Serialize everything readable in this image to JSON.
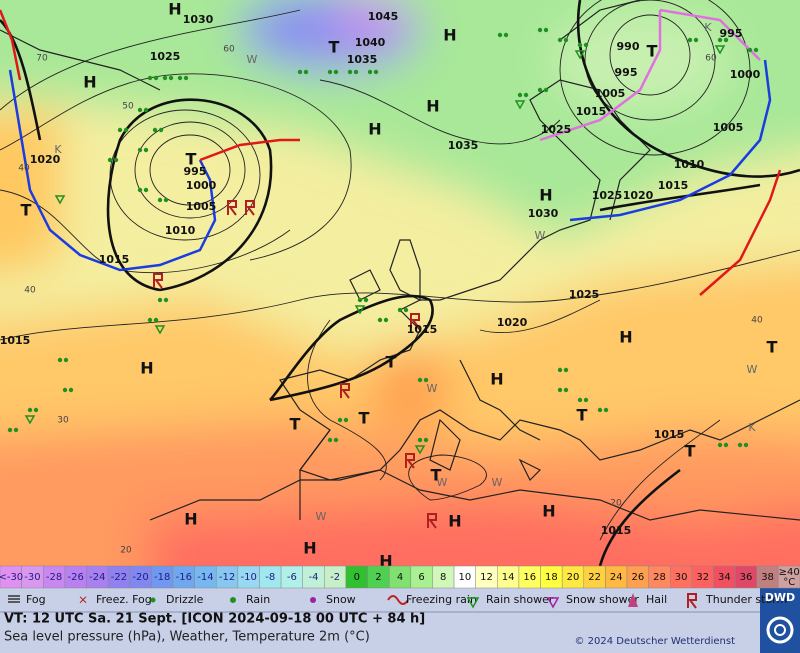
{
  "map": {
    "isobar_labels": [
      "1030",
      "1025",
      "1045",
      "1040",
      "1035",
      "1035",
      "1020",
      "995",
      "1000",
      "1005",
      "1010",
      "1015",
      "1015",
      "990",
      "995",
      "1005",
      "1015",
      "1025",
      "1000",
      "995",
      "1005",
      "1010",
      "1015",
      "1025",
      "1020",
      "1030",
      "1025",
      "1020",
      "1015",
      "1015",
      "1015"
    ],
    "pressure_centers": [
      "H",
      "H",
      "T",
      "H",
      "H",
      "H",
      "T",
      "T",
      "H",
      "T",
      "T",
      "T",
      "T",
      "H",
      "H",
      "H",
      "T",
      "T",
      "T",
      "T",
      "H",
      "H",
      "H",
      "H",
      "H"
    ],
    "grid_labels": [
      "60",
      "50",
      "40",
      "40",
      "30",
      "20",
      "60",
      "40",
      "20",
      "70"
    ],
    "airmass_labels": [
      "K",
      "K",
      "W",
      "W",
      "W",
      "W",
      "W",
      "W",
      "K",
      "W"
    ]
  },
  "temperature_scale": {
    "below": "<-30",
    "steps": [
      -30,
      -28,
      -26,
      -24,
      -22,
      -20,
      -18,
      -16,
      -14,
      -12,
      -10,
      -8,
      -6,
      -4,
      -2,
      0,
      2,
      4,
      6,
      8,
      10,
      12,
      14,
      16,
      18,
      20,
      22,
      24,
      26,
      28,
      30,
      32,
      34,
      36,
      38
    ],
    "above": "≥40",
    "unit": "°C"
  },
  "legend": [
    "Fog",
    "Freez. Fog",
    "Drizzle",
    "Rain",
    "Snow",
    "Freezing rain",
    "Rain shower",
    "Snow shower",
    "Hail",
    "Thunder storm"
  ],
  "footer": {
    "valid_time": "VT: 12 UTC Sa.  21 Sept. [ICON 2024-09-18  00 UTC + 84 h]",
    "description": "Sea level pressure (hPa), Weather, Temperature 2m (°C)",
    "copyright": "© 2024 Deutscher Wetterdienst",
    "logo": "DWD"
  }
}
